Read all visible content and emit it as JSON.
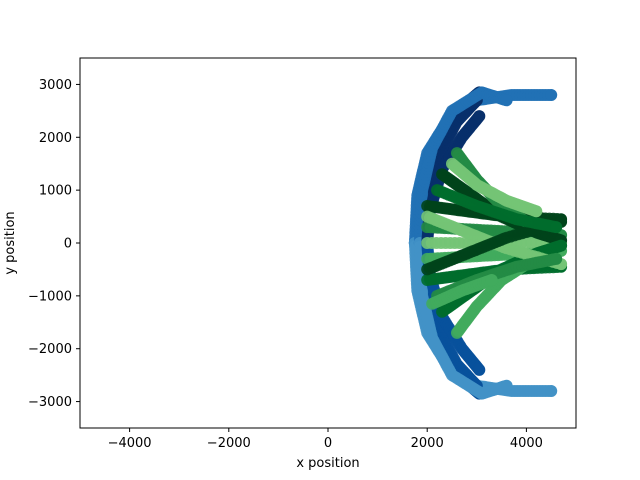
{
  "chart_data": {
    "type": "scatter",
    "title": "",
    "xlabel": "x position",
    "ylabel": "y position",
    "xlim": [
      -5000,
      5000
    ],
    "ylim": [
      -3500,
      3500
    ],
    "xticks": [
      -4000,
      -2000,
      0,
      2000,
      4000
    ],
    "yticks": [
      -3000,
      -2000,
      -1000,
      0,
      1000,
      2000,
      3000
    ],
    "xtick_labels": [
      "−4000",
      "−2000",
      "0",
      "2000",
      "4000"
    ],
    "ytick_labels": [
      "−3000",
      "−2000",
      "−1000",
      "0",
      "1000",
      "2000",
      "3000"
    ],
    "grid": false,
    "legend": "none",
    "series": [
      {
        "colormap": "Blues",
        "colors": [
          "#08306b",
          "#08519c",
          "#2171b5",
          "#4292c6"
        ],
        "paths": [
          [
            [
              1800,
              0
            ],
            [
              1850,
              700
            ],
            [
              2050,
              1500
            ],
            [
              2400,
              2200
            ],
            [
              2800,
              2650
            ],
            [
              3050,
              2850
            ]
          ],
          [
            [
              1800,
              0
            ],
            [
              1850,
              -700
            ],
            [
              2050,
              -1500
            ],
            [
              2400,
              -2200
            ],
            [
              2800,
              -2650
            ],
            [
              3050,
              -2850
            ]
          ],
          [
            [
              1750,
              0
            ],
            [
              1800,
              900
            ],
            [
              2000,
              1700
            ],
            [
              2400,
              2300
            ],
            [
              3000,
              2700
            ],
            [
              3700,
              2800
            ],
            [
              4500,
              2800
            ]
          ],
          [
            [
              1750,
              0
            ],
            [
              1800,
              -900
            ],
            [
              2000,
              -1700
            ],
            [
              2400,
              -2300
            ],
            [
              3000,
              -2700
            ],
            [
              3700,
              -2800
            ],
            [
              4500,
              -2800
            ]
          ],
          [
            [
              1900,
              0
            ],
            [
              1950,
              800
            ],
            [
              2200,
              1600
            ],
            [
              2600,
              2300
            ],
            [
              3000,
              2700
            ]
          ],
          [
            [
              1900,
              0
            ],
            [
              1950,
              -800
            ],
            [
              2200,
              -1600
            ],
            [
              2600,
              -2300
            ],
            [
              3000,
              -2700
            ]
          ],
          [
            [
              1850,
              0
            ],
            [
              1900,
              1000
            ],
            [
              2100,
              1800
            ],
            [
              2500,
              2500
            ],
            [
              3100,
              2850
            ],
            [
              3600,
              2700
            ]
          ],
          [
            [
              1850,
              0
            ],
            [
              1900,
              -1000
            ],
            [
              2100,
              -1800
            ],
            [
              2500,
              -2500
            ],
            [
              3100,
              -2850
            ],
            [
              3600,
              -2700
            ]
          ],
          [
            [
              2000,
              0
            ],
            [
              2050,
              600
            ],
            [
              2300,
              1400
            ],
            [
              2700,
              2000
            ],
            [
              3050,
              2400
            ]
          ],
          [
            [
              2000,
              0
            ],
            [
              2050,
              -600
            ],
            [
              2300,
              -1400
            ],
            [
              2700,
              -2000
            ],
            [
              3050,
              -2400
            ]
          ]
        ]
      },
      {
        "colormap": "Greens",
        "colors": [
          "#00441b",
          "#006d2c",
          "#238b45",
          "#41ab5d",
          "#74c476"
        ],
        "paths": [
          [
            [
              2000,
              700
            ],
            [
              2800,
              600
            ],
            [
              3600,
              500
            ],
            [
              4700,
              450
            ]
          ],
          [
            [
              2000,
              -700
            ],
            [
              2800,
              -600
            ],
            [
              3600,
              -500
            ],
            [
              4700,
              -450
            ]
          ],
          [
            [
              2000,
              300
            ],
            [
              3000,
              250
            ],
            [
              4000,
              200
            ],
            [
              4700,
              150
            ]
          ],
          [
            [
              2000,
              -300
            ],
            [
              3000,
              -250
            ],
            [
              4000,
              -200
            ],
            [
              4700,
              -150
            ]
          ],
          [
            [
              2000,
              0
            ],
            [
              3300,
              0
            ],
            [
              4700,
              0
            ]
          ],
          [
            [
              2300,
              1300
            ],
            [
              2900,
              900
            ],
            [
              3500,
              500
            ],
            [
              4200,
              200
            ],
            [
              4700,
              50
            ]
          ],
          [
            [
              2300,
              -1300
            ],
            [
              2900,
              -900
            ],
            [
              3500,
              -500
            ],
            [
              4200,
              -200
            ],
            [
              4700,
              -50
            ]
          ],
          [
            [
              2600,
              1700
            ],
            [
              3000,
              1200
            ],
            [
              3500,
              700
            ],
            [
              4000,
              400
            ]
          ],
          [
            [
              2600,
              -1700
            ],
            [
              3000,
              -1200
            ],
            [
              3500,
              -700
            ],
            [
              4000,
              -400
            ]
          ],
          [
            [
              2000,
              500
            ],
            [
              2800,
              200
            ],
            [
              3600,
              -100
            ],
            [
              4700,
              -400
            ]
          ],
          [
            [
              2000,
              -500
            ],
            [
              2800,
              -200
            ],
            [
              3600,
              100
            ],
            [
              4700,
              400
            ]
          ],
          [
            [
              2200,
              1000
            ],
            [
              3000,
              700
            ],
            [
              3800,
              450
            ],
            [
              4600,
              300
            ]
          ],
          [
            [
              2200,
              -1000
            ],
            [
              3000,
              -700
            ],
            [
              3800,
              -450
            ],
            [
              4600,
              -300
            ]
          ],
          [
            [
              2100,
              -1150
            ],
            [
              2700,
              -900
            ],
            [
              3300,
              -700
            ]
          ],
          [
            [
              2500,
              1500
            ],
            [
              3000,
              1100
            ],
            [
              3600,
              800
            ],
            [
              4200,
              600
            ]
          ]
        ]
      }
    ]
  }
}
